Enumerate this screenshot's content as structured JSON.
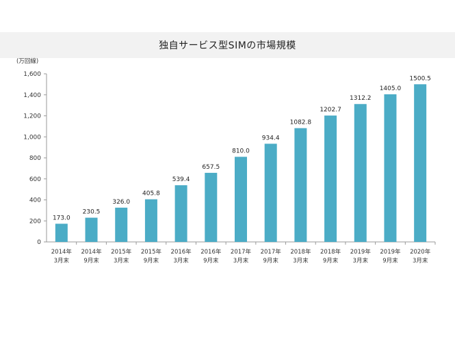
{
  "chart_data": {
    "type": "bar",
    "title": "独自サービス型SIMの市場規模",
    "ylabel": "(万回線)",
    "xlabel": "",
    "ylim": [
      0,
      1600
    ],
    "yticks": [
      0,
      200,
      400,
      600,
      800,
      1000,
      1200,
      1400,
      1600
    ],
    "ytick_labels": [
      "0",
      "200",
      "400",
      "600",
      "800",
      "1,000",
      "1,200",
      "1,400",
      "1,600"
    ],
    "grid": false,
    "bar_color": "#4bacc6",
    "categories": [
      [
        "2014年",
        "3月末"
      ],
      [
        "2014年",
        "9月末"
      ],
      [
        "2015年",
        "3月末"
      ],
      [
        "2015年",
        "9月末"
      ],
      [
        "2016年",
        "3月末"
      ],
      [
        "2016年",
        "9月末"
      ],
      [
        "2017年",
        "3月末"
      ],
      [
        "2017年",
        "9月末"
      ],
      [
        "2018年",
        "3月末"
      ],
      [
        "2018年",
        "9月末"
      ],
      [
        "2019年",
        "3月末"
      ],
      [
        "2019年",
        "9月末"
      ],
      [
        "2020年",
        "3月末"
      ]
    ],
    "values": [
      173.0,
      230.5,
      326.0,
      405.8,
      539.4,
      657.5,
      810.0,
      934.4,
      1082.8,
      1202.7,
      1312.2,
      1405.0,
      1500.5
    ],
    "data_labels": [
      "173.0",
      "230.5",
      "326.0",
      "405.8",
      "539.4",
      "657.5",
      "810.0",
      "934.4",
      "1082.8",
      "1202.7",
      "1312.2",
      "1405.0",
      "1500.5"
    ]
  }
}
